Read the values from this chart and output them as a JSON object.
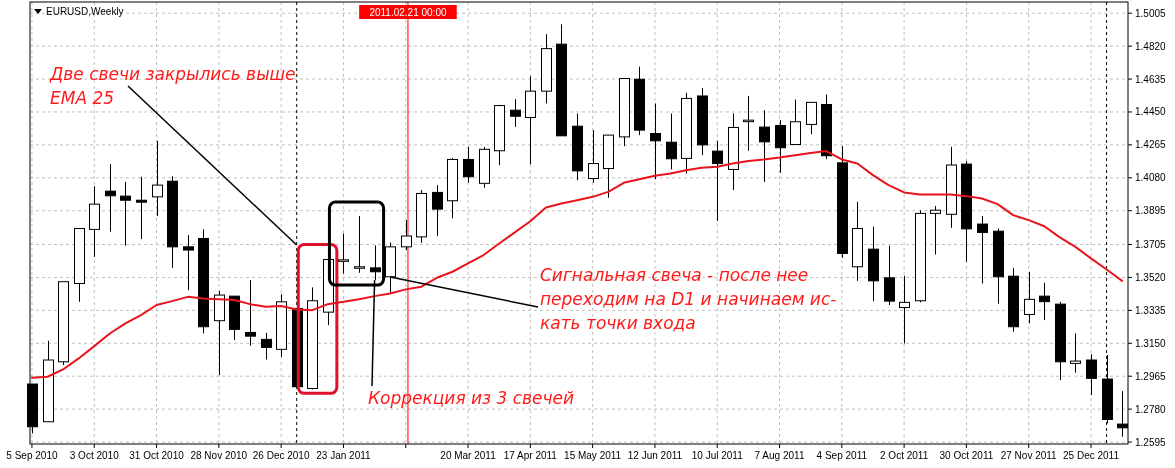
{
  "chart_data": {
    "type": "candlestick",
    "title": "EURUSD,Weekly",
    "x": [
      "2010-09-05",
      "2010-09-12",
      "2010-09-19",
      "2010-09-26",
      "2010-10-03",
      "2010-10-10",
      "2010-10-17",
      "2010-10-24",
      "2010-10-31",
      "2010-11-07",
      "2010-11-14",
      "2010-11-21",
      "2010-11-28",
      "2010-12-05",
      "2010-12-12",
      "2010-12-19",
      "2010-12-26",
      "2011-01-02",
      "2011-01-09",
      "2011-01-16",
      "2011-01-23",
      "2011-01-30",
      "2011-02-06",
      "2011-02-13",
      "2011-02-20",
      "2011-02-27",
      "2011-03-06",
      "2011-03-13",
      "2011-03-20",
      "2011-03-27",
      "2011-04-03",
      "2011-04-10",
      "2011-04-17",
      "2011-04-24",
      "2011-05-01",
      "2011-05-08",
      "2011-05-15",
      "2011-05-22",
      "2011-05-29",
      "2011-06-05",
      "2011-06-12",
      "2011-06-19",
      "2011-06-26",
      "2011-07-03",
      "2011-07-10",
      "2011-07-17",
      "2011-07-24",
      "2011-07-31",
      "2011-08-07",
      "2011-08-14",
      "2011-08-21",
      "2011-08-28",
      "2011-09-04",
      "2011-09-11",
      "2011-09-18",
      "2011-09-25",
      "2011-10-02",
      "2011-10-09",
      "2011-10-16",
      "2011-10-23",
      "2011-10-30",
      "2011-11-06",
      "2011-11-13",
      "2011-11-20",
      "2011-11-27",
      "2011-12-04",
      "2011-12-11",
      "2011-12-18",
      "2011-12-25",
      "2012-01-01",
      "2012-01-08"
    ],
    "ohlc": [
      [
        1.2921,
        1.2921,
        1.2644,
        1.2681
      ],
      [
        1.2709,
        1.3164,
        1.2709,
        1.3056
      ],
      [
        1.3046,
        1.3496,
        1.3027,
        1.3496
      ],
      [
        1.3486,
        1.3795,
        1.3383,
        1.3795
      ],
      [
        1.379,
        1.4033,
        1.3636,
        1.3932
      ],
      [
        1.4005,
        1.4157,
        1.3777,
        1.3979
      ],
      [
        1.3977,
        1.4057,
        1.3698,
        1.3954
      ],
      [
        1.3954,
        1.4086,
        1.3735,
        1.3943
      ],
      [
        1.3973,
        1.4288,
        1.3865,
        1.4039
      ],
      [
        1.4061,
        1.4089,
        1.3574,
        1.3692
      ],
      [
        1.3692,
        1.3758,
        1.3449,
        1.3674
      ],
      [
        1.3739,
        1.379,
        1.3205,
        1.3243
      ],
      [
        1.3277,
        1.3445,
        1.2971,
        1.3421
      ],
      [
        1.3415,
        1.3415,
        1.3168,
        1.3228
      ],
      [
        1.3211,
        1.3505,
        1.3136,
        1.319
      ],
      [
        1.3172,
        1.3209,
        1.3059,
        1.3127
      ],
      [
        1.3116,
        1.3426,
        1.3074,
        1.3383
      ],
      [
        1.3346,
        1.3346,
        1.2906,
        1.2906
      ],
      [
        1.2896,
        1.3464,
        1.2891,
        1.3389
      ],
      [
        1.3325,
        1.3627,
        1.3252,
        1.3621
      ],
      [
        1.3615,
        1.3767,
        1.3542,
        1.3619
      ],
      [
        1.3578,
        1.3865,
        1.3546,
        1.358
      ],
      [
        1.3574,
        1.37,
        1.3505,
        1.3552
      ],
      [
        1.3524,
        1.3717,
        1.343,
        1.3692
      ],
      [
        1.3692,
        1.3842,
        1.3674,
        1.3753
      ],
      [
        1.3748,
        1.4011,
        1.3715,
        1.3992
      ],
      [
        1.3998,
        1.4039,
        1.3752,
        1.3904
      ],
      [
        1.3951,
        1.4192,
        1.3852,
        1.4183
      ],
      [
        1.4183,
        1.4254,
        1.4052,
        1.4086
      ],
      [
        1.4049,
        1.4254,
        1.4024,
        1.424
      ],
      [
        1.4232,
        1.449,
        1.4151,
        1.4486
      ],
      [
        1.446,
        1.4522,
        1.4366,
        1.4426
      ],
      [
        1.4419,
        1.4651,
        1.4157,
        1.4567
      ],
      [
        1.4567,
        1.4887,
        1.4498,
        1.4806
      ],
      [
        1.4831,
        1.4943,
        1.4316,
        1.4316
      ],
      [
        1.437,
        1.4441,
        1.4067,
        1.4119
      ],
      [
        1.4076,
        1.4348,
        1.4052,
        1.416
      ],
      [
        1.4132,
        1.432,
        1.3968,
        1.432
      ],
      [
        1.431,
        1.464,
        1.4258,
        1.4638
      ],
      [
        1.4634,
        1.4704,
        1.432,
        1.4348
      ],
      [
        1.4329,
        1.4498,
        1.4072,
        1.4288
      ],
      [
        1.428,
        1.4441,
        1.4127,
        1.4187
      ],
      [
        1.4189,
        1.4558,
        1.4104,
        1.4526
      ],
      [
        1.454,
        1.4584,
        1.4207,
        1.4265
      ],
      [
        1.423,
        1.4288,
        1.3838,
        1.416
      ],
      [
        1.4127,
        1.4441,
        1.4011,
        1.4363
      ],
      [
        1.4398,
        1.454,
        1.4232,
        1.4404
      ],
      [
        1.4365,
        1.446,
        1.4057,
        1.4282
      ],
      [
        1.4374,
        1.4404,
        1.4108,
        1.4249
      ],
      [
        1.4267,
        1.452,
        1.4267,
        1.4395
      ],
      [
        1.438,
        1.4504,
        1.4325,
        1.4504
      ],
      [
        1.4492,
        1.4548,
        1.4185,
        1.4204
      ],
      [
        1.4164,
        1.4258,
        1.363,
        1.3655
      ],
      [
        1.358,
        1.3945,
        1.3501,
        1.3795
      ],
      [
        1.3679,
        1.3805,
        1.3387,
        1.3501
      ],
      [
        1.3518,
        1.3698,
        1.3365,
        1.3387
      ],
      [
        1.3351,
        1.3529,
        1.3149,
        1.338
      ],
      [
        1.3389,
        1.3898,
        1.338,
        1.388
      ],
      [
        1.388,
        1.3921,
        1.3649,
        1.3898
      ],
      [
        1.3875,
        1.4254,
        1.3799,
        1.4152
      ],
      [
        1.4157,
        1.4174,
        1.3608,
        1.3793
      ],
      [
        1.382,
        1.3865,
        1.3486,
        1.3773
      ],
      [
        1.378,
        1.3795,
        1.3372,
        1.3524
      ],
      [
        1.3527,
        1.3574,
        1.3215,
        1.3243
      ],
      [
        1.3312,
        1.3552,
        1.3262,
        1.3397
      ],
      [
        1.3415,
        1.349,
        1.328,
        1.3384
      ],
      [
        1.337,
        1.3383,
        1.2943,
        1.3046
      ],
      [
        1.3037,
        1.3205,
        1.2985,
        1.305
      ],
      [
        1.3056,
        1.3089,
        1.2859,
        1.2953
      ],
      [
        1.2949,
        1.3084,
        1.27,
        1.2722
      ],
      [
        1.2696,
        1.2881,
        1.2625,
        1.2675
      ]
    ],
    "series": [
      {
        "type": "line",
        "color": "#e8141c",
        "values": [
          1.2956,
          1.2962,
          1.3003,
          1.3065,
          1.3134,
          1.3205,
          1.3262,
          1.3308,
          1.3365,
          1.3387,
          1.3411,
          1.3402,
          1.3397,
          1.3393,
          1.337,
          1.3355,
          1.3359,
          1.334,
          1.3336,
          1.337,
          1.3383,
          1.3398,
          1.3415,
          1.343,
          1.3453,
          1.3468,
          1.3518,
          1.3552,
          1.3599,
          1.3646,
          1.3711,
          1.3773,
          1.3836,
          1.3913,
          1.3936,
          1.3954,
          1.3973,
          1.4001,
          1.4052,
          1.4072,
          1.4091,
          1.4104,
          1.4123,
          1.4136,
          1.4142,
          1.416,
          1.4175,
          1.4183,
          1.4194,
          1.4207,
          1.422,
          1.423,
          1.4183,
          1.416,
          1.4095,
          1.4039,
          1.3998,
          1.3986,
          1.3986,
          1.3986,
          1.3977,
          1.3964,
          1.3932,
          1.387,
          1.3842,
          1.3808,
          1.3745,
          1.3692,
          1.3627,
          1.3565,
          1.3501
        ]
      }
    ],
    "xlim": [
      "2010-09-04T03:00",
      "2012-01-10T15:00"
    ],
    "xticks": [
      {
        "value": "2010-09-05",
        "label": "5 Sep 2010"
      },
      {
        "value": "2010-10-03",
        "label": "3 Oct 2010"
      },
      {
        "value": "2010-10-31",
        "label": "31 Oct 2010"
      },
      {
        "value": "2010-11-28",
        "label": "28 Nov 2010"
      },
      {
        "value": "2010-12-26",
        "label": "26 Dec 2010"
      },
      {
        "value": "2011-01-23",
        "label": "23 Jan 2011"
      },
      {
        "value": "2011-02-20",
        "label": null
      },
      {
        "value": "2011-03-20",
        "label": "20 Mar 2011"
      },
      {
        "value": "2011-04-17",
        "label": "17 Apr 2011"
      },
      {
        "value": "2011-05-15",
        "label": "15 May 2011"
      },
      {
        "value": "2011-06-12",
        "label": "12 Jun 2011"
      },
      {
        "value": "2011-07-10",
        "label": "10 Jul 2011"
      },
      {
        "value": "2011-08-07",
        "label": "7 Aug 2011"
      },
      {
        "value": "2011-09-04",
        "label": "4 Sep 2011"
      },
      {
        "value": "2011-10-02",
        "label": "2 Oct 2011"
      },
      {
        "value": "2011-10-30",
        "label": "30 Oct 2011"
      },
      {
        "value": "2011-11-27",
        "label": "27 Nov 2011"
      },
      {
        "value": "2011-12-25",
        "label": "25 Dec 2011"
      }
    ],
    "ylim": [
      1.2584,
      1.5068
    ],
    "yticks": [
      1.5005,
      {
        "value": 1.482,
        "label": "1.4820"
      },
      1.4635,
      {
        "value": 1.445,
        "label": "1.4450"
      },
      1.4265,
      {
        "value": 1.408,
        "label": "1.4080"
      },
      1.3895,
      1.3705,
      {
        "value": 1.352,
        "label": "1.3520"
      },
      1.3335,
      {
        "value": 1.315,
        "label": "1.3150"
      },
      1.2965,
      {
        "value": 1.278,
        "label": "1.2780"
      },
      1.2595
    ],
    "grid": true,
    "ref_lines": [
      {
        "axis": "x",
        "value": "2011-01-02",
        "color": "#000000",
        "line_style": "dashed"
      },
      {
        "axis": "x",
        "value": "2011-02-21",
        "label": "2011.02.21 00:00",
        "color": "#ff0000"
      },
      {
        "axis": "x",
        "value": "2012-01-01",
        "color": "#000000",
        "line_style": "dashed"
      }
    ],
    "annotations": [
      {
        "text": "Две свечи закрылись выше\nEMA 25",
        "x": "2011-01-02",
        "y": 1.3702
      },
      {
        "text": "Сигнальная свеча - после нее\nпереходим на D1 и начинаем ис-\nкать точки входа",
        "x": "2011-02-13",
        "y": 1.3522
      },
      {
        "text": "Коррекция из 3 свечей",
        "x": "2011-02-06",
        "y": 1.3505
      }
    ]
  }
}
